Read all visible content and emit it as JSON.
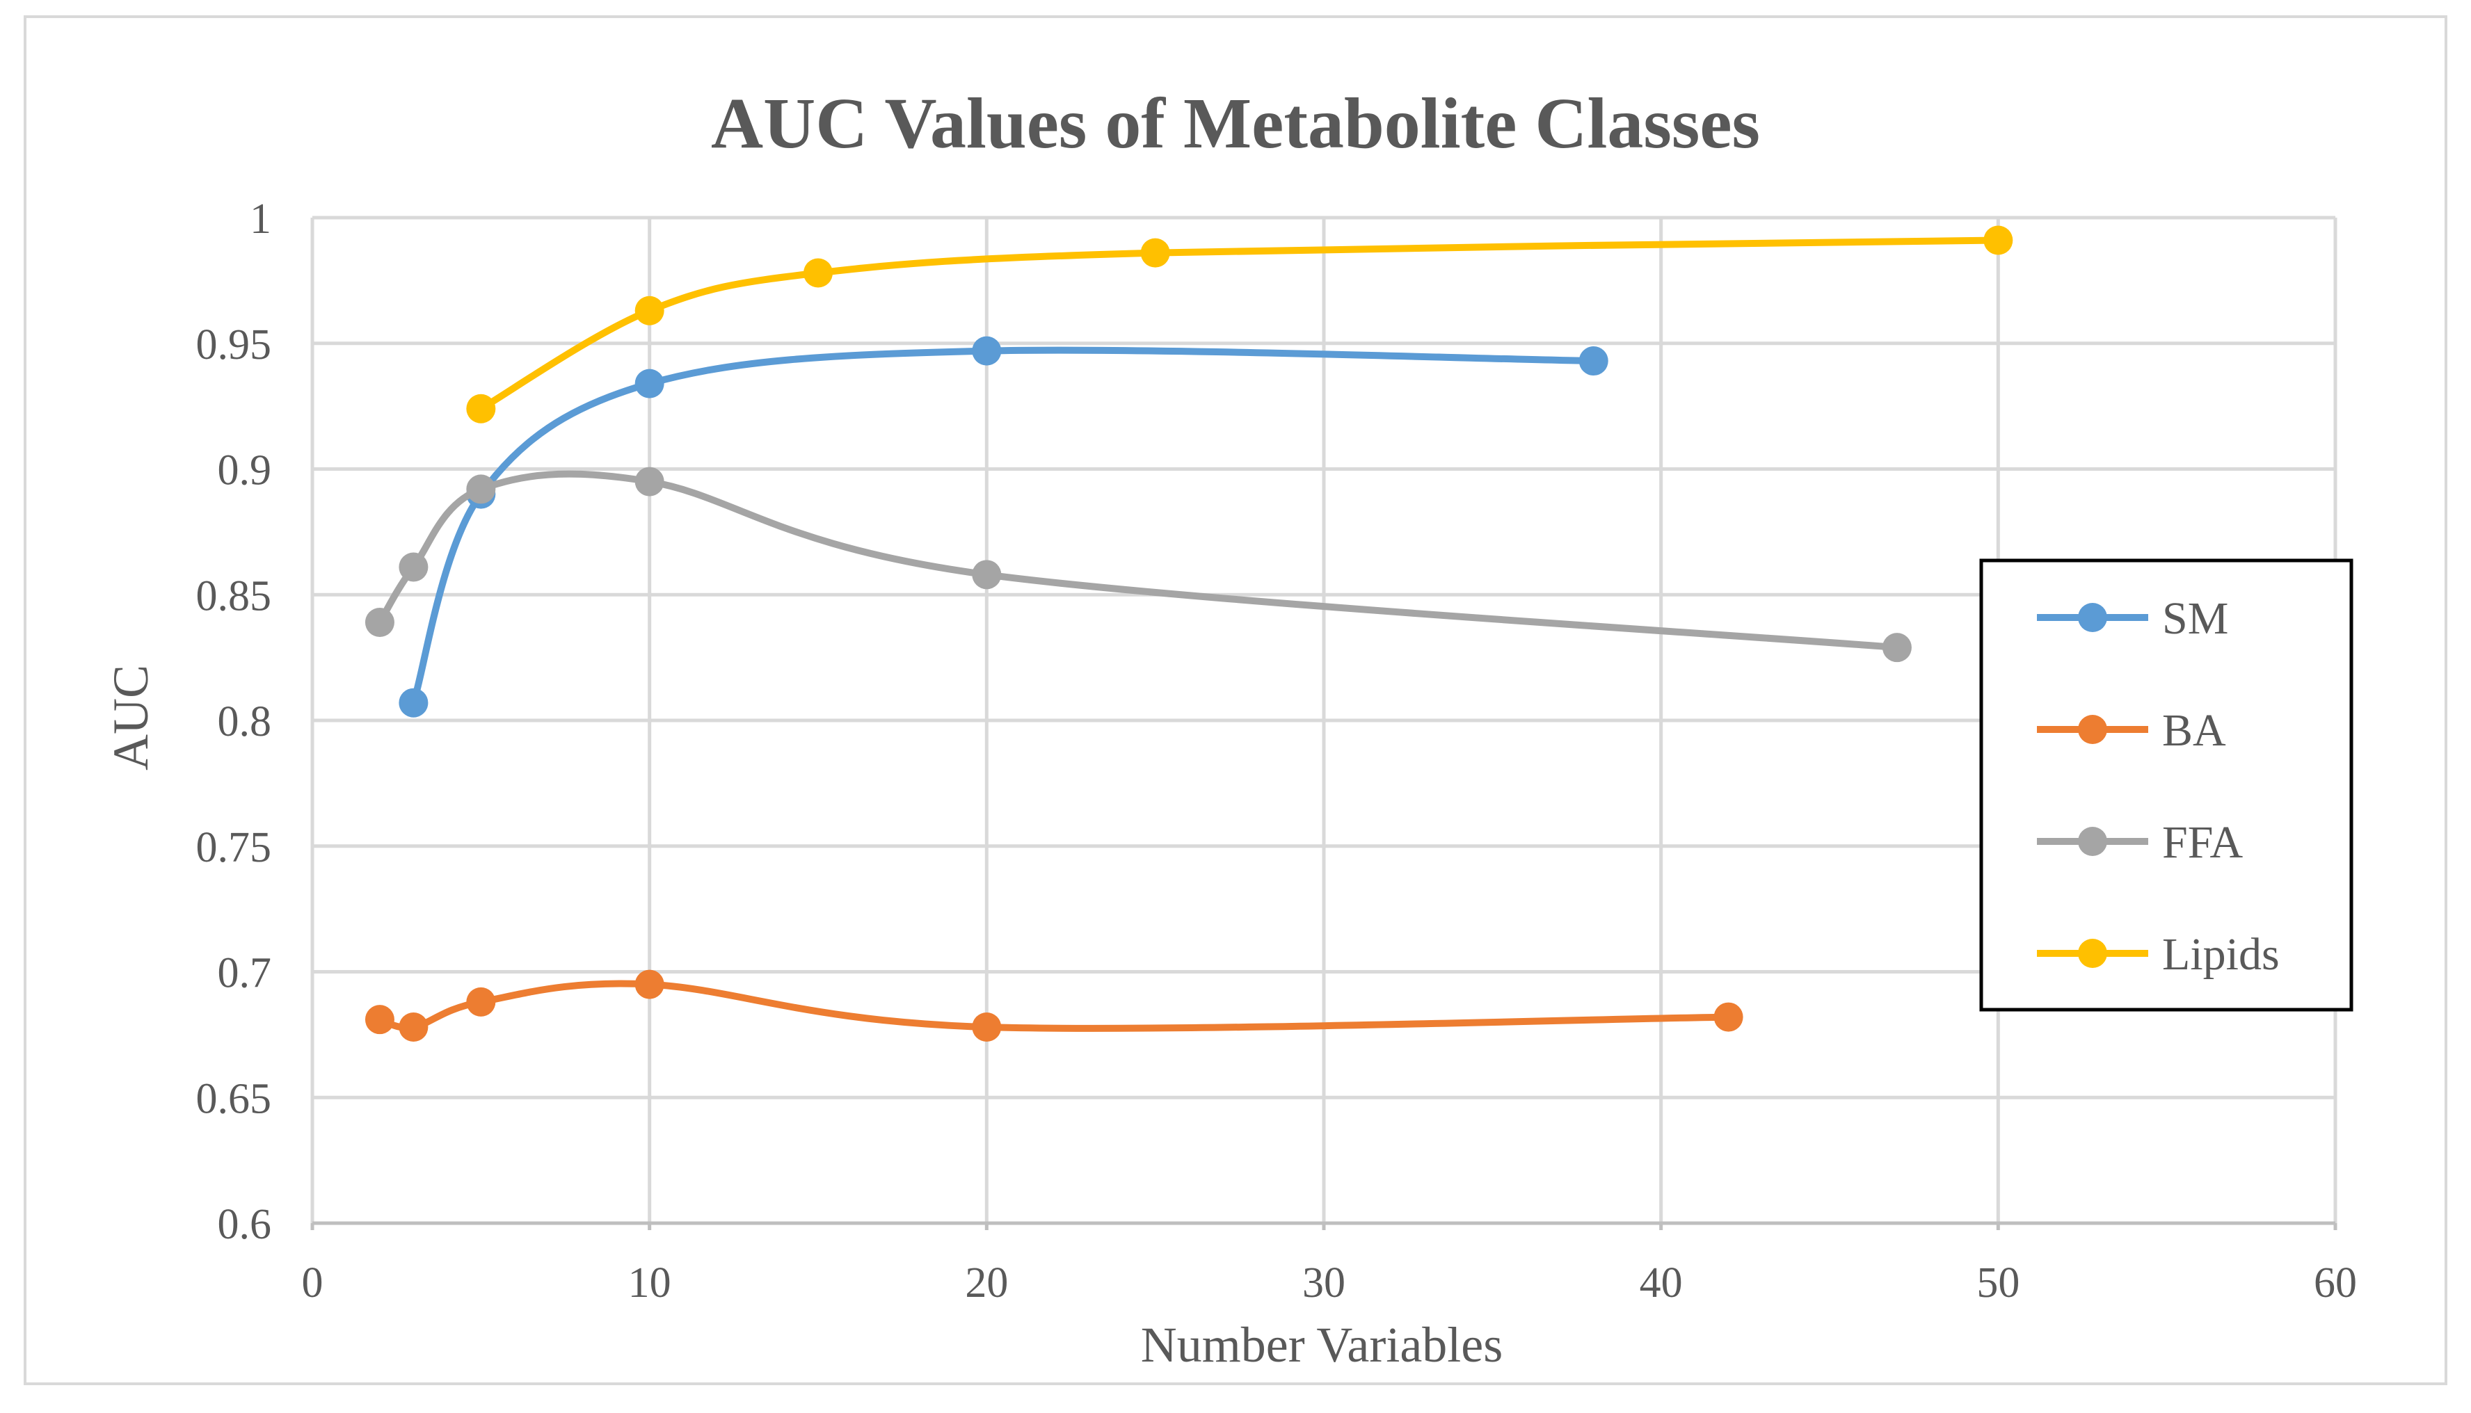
{
  "chart_data": {
    "type": "line",
    "title": "AUC Values of Metabolite Classes",
    "xlabel": "Number Variables",
    "ylabel": "AUC",
    "xlim": [
      0,
      60
    ],
    "ylim": [
      0.6,
      1
    ],
    "x_ticks": [
      0,
      10,
      20,
      30,
      40,
      50,
      60
    ],
    "y_ticks": [
      0.6,
      0.65,
      0.7,
      0.75,
      0.8,
      0.85,
      0.9,
      0.95,
      1
    ],
    "x_tick_labels": [
      "0",
      "10",
      "20",
      "30",
      "40",
      "50",
      "60"
    ],
    "y_tick_labels": [
      "0.6",
      "0.65",
      "0.7",
      "0.75",
      "0.8",
      "0.85",
      "0.9",
      "0.95",
      "1"
    ],
    "grid": true,
    "smooth": true,
    "legend_position": "right",
    "series": [
      {
        "name": "SM",
        "color": "#5b9bd5",
        "points": [
          [
            3,
            0.807
          ],
          [
            5,
            0.89
          ],
          [
            10,
            0.934
          ],
          [
            20,
            0.947
          ],
          [
            38,
            0.943
          ]
        ]
      },
      {
        "name": "BA",
        "color": "#ed7d31",
        "points": [
          [
            2,
            0.681
          ],
          [
            3,
            0.678
          ],
          [
            5,
            0.688
          ],
          [
            10,
            0.695
          ],
          [
            20,
            0.678
          ],
          [
            42,
            0.682
          ]
        ]
      },
      {
        "name": "FFA",
        "color": "#a5a5a5",
        "points": [
          [
            2,
            0.839
          ],
          [
            3,
            0.861
          ],
          [
            5,
            0.892
          ],
          [
            10,
            0.895
          ],
          [
            20,
            0.858
          ],
          [
            47,
            0.829
          ]
        ]
      },
      {
        "name": "Lipids",
        "color": "#ffc000",
        "points": [
          [
            5,
            0.924
          ],
          [
            10,
            0.963
          ],
          [
            15,
            0.978
          ],
          [
            25,
            0.986
          ],
          [
            50,
            0.991
          ]
        ]
      }
    ]
  }
}
